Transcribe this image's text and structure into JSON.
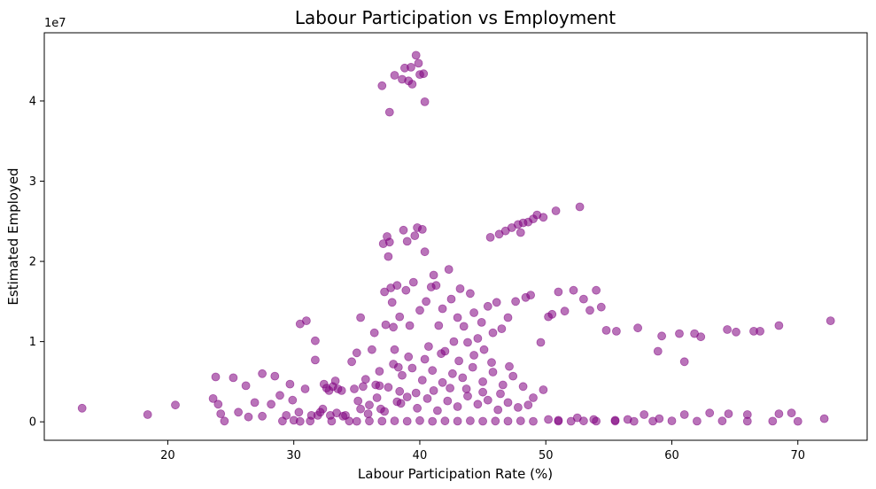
{
  "chart_data": {
    "type": "scatter",
    "title": "Labour Participation vs Employment",
    "xlabel": "Labour Participation Rate (%)",
    "ylabel": "Estimated Employed",
    "offset_text": "1e7",
    "xlim": [
      10.2,
      75.5
    ],
    "ylim": [
      -2300000,
      48500000
    ],
    "xticks": [
      20,
      30,
      40,
      50,
      60,
      70
    ],
    "xtick_labels": [
      "20",
      "30",
      "40",
      "50",
      "60",
      "70"
    ],
    "yticks": [
      0,
      10000000,
      20000000,
      30000000,
      40000000
    ],
    "ytick_labels": [
      "0",
      "1",
      "2",
      "3",
      "4"
    ],
    "grid": false,
    "color": "#800080",
    "opacity": 0.55,
    "points": [
      [
        13.2,
        1700000
      ],
      [
        18.4,
        900000
      ],
      [
        20.6,
        2100000
      ],
      [
        23.6,
        2900000
      ],
      [
        23.8,
        5600000
      ],
      [
        24.0,
        2200000
      ],
      [
        24.2,
        1000000
      ],
      [
        24.5,
        100000
      ],
      [
        25.2,
        5500000
      ],
      [
        25.6,
        1200000
      ],
      [
        26.2,
        4500000
      ],
      [
        26.4,
        600000
      ],
      [
        26.9,
        2400000
      ],
      [
        27.5,
        6000000
      ],
      [
        27.5,
        700000
      ],
      [
        28.2,
        2200000
      ],
      [
        28.5,
        5700000
      ],
      [
        28.9,
        3300000
      ],
      [
        29.1,
        100000
      ],
      [
        29.4,
        800000
      ],
      [
        29.7,
        4700000
      ],
      [
        29.9,
        2700000
      ],
      [
        30.0,
        200000
      ],
      [
        30.4,
        1200000
      ],
      [
        30.5,
        12200000
      ],
      [
        30.9,
        4100000
      ],
      [
        31.0,
        12600000
      ],
      [
        31.3,
        100000
      ],
      [
        31.4,
        800000
      ],
      [
        31.7,
        10100000
      ],
      [
        31.7,
        7700000
      ],
      [
        31.9,
        800000
      ],
      [
        32.1,
        1200000
      ],
      [
        32.3,
        1600000
      ],
      [
        32.4,
        4700000
      ],
      [
        32.6,
        4200000
      ],
      [
        32.8,
        3900000
      ],
      [
        32.9,
        800000
      ],
      [
        33.1,
        4400000
      ],
      [
        33.3,
        5100000
      ],
      [
        33.4,
        1100000
      ],
      [
        33.5,
        4100000
      ],
      [
        33.8,
        3900000
      ],
      [
        33.9,
        700000
      ],
      [
        34.1,
        800000
      ],
      [
        34.4,
        100000
      ],
      [
        34.6,
        7500000
      ],
      [
        34.8,
        4100000
      ],
      [
        35.0,
        8600000
      ],
      [
        35.1,
        2600000
      ],
      [
        35.3,
        13000000
      ],
      [
        35.3,
        1600000
      ],
      [
        35.5,
        4400000
      ],
      [
        35.7,
        5300000
      ],
      [
        35.9,
        1000000
      ],
      [
        36.0,
        2100000
      ],
      [
        36.2,
        9000000
      ],
      [
        36.4,
        11100000
      ],
      [
        36.5,
        4600000
      ],
      [
        36.6,
        3000000
      ],
      [
        36.8,
        6300000
      ],
      [
        36.9,
        1600000
      ],
      [
        37.0,
        41900000
      ],
      [
        37.1,
        22200000
      ],
      [
        37.2,
        16200000
      ],
      [
        37.3,
        12100000
      ],
      [
        37.4,
        23100000
      ],
      [
        37.5,
        20600000
      ],
      [
        37.6,
        38600000
      ],
      [
        37.6,
        22400000
      ],
      [
        37.7,
        16700000
      ],
      [
        37.8,
        14900000
      ],
      [
        37.9,
        11800000
      ],
      [
        38.0,
        43200000
      ],
      [
        38.0,
        9000000
      ],
      [
        38.2,
        17000000
      ],
      [
        38.3,
        6800000
      ],
      [
        38.4,
        13100000
      ],
      [
        38.5,
        2300000
      ],
      [
        38.6,
        42700000
      ],
      [
        38.7,
        23900000
      ],
      [
        38.8,
        44100000
      ],
      [
        38.9,
        16400000
      ],
      [
        39.0,
        22500000
      ],
      [
        39.1,
        42500000
      ],
      [
        39.2,
        12000000
      ],
      [
        39.3,
        44200000
      ],
      [
        39.4,
        42100000
      ],
      [
        39.5,
        17400000
      ],
      [
        39.6,
        23200000
      ],
      [
        39.7,
        45700000
      ],
      [
        39.8,
        24200000
      ],
      [
        39.9,
        44700000
      ],
      [
        40.0,
        43300000
      ],
      [
        40.0,
        13900000
      ],
      [
        40.2,
        24000000
      ],
      [
        40.3,
        43400000
      ],
      [
        40.4,
        39900000
      ],
      [
        40.4,
        21200000
      ],
      [
        40.5,
        15000000
      ],
      [
        40.7,
        9400000
      ],
      [
        40.9,
        16800000
      ],
      [
        41.1,
        18300000
      ],
      [
        41.3,
        17000000
      ],
      [
        41.5,
        12000000
      ],
      [
        41.8,
        14100000
      ],
      [
        42.0,
        8800000
      ],
      [
        42.3,
        19000000
      ],
      [
        42.5,
        15300000
      ],
      [
        42.7,
        10000000
      ],
      [
        43.0,
        13000000
      ],
      [
        43.2,
        16600000
      ],
      [
        43.5,
        11900000
      ],
      [
        43.8,
        9900000
      ],
      [
        44.0,
        16000000
      ],
      [
        44.3,
        13600000
      ],
      [
        44.6,
        10400000
      ],
      [
        44.9,
        12400000
      ],
      [
        45.1,
        9000000
      ],
      [
        45.4,
        14400000
      ],
      [
        45.6,
        23000000
      ],
      [
        45.8,
        11100000
      ],
      [
        46.1,
        14900000
      ],
      [
        46.3,
        23400000
      ],
      [
        46.5,
        11600000
      ],
      [
        46.8,
        23800000
      ],
      [
        47.0,
        13000000
      ],
      [
        47.3,
        24200000
      ],
      [
        47.6,
        15000000
      ],
      [
        47.8,
        24600000
      ],
      [
        48.0,
        23600000
      ],
      [
        48.2,
        24800000
      ],
      [
        48.4,
        15500000
      ],
      [
        48.6,
        24900000
      ],
      [
        48.8,
        15800000
      ],
      [
        49.0,
        25300000
      ],
      [
        49.3,
        25800000
      ],
      [
        49.6,
        9900000
      ],
      [
        49.8,
        25500000
      ],
      [
        50.2,
        13100000
      ],
      [
        50.5,
        13400000
      ],
      [
        50.8,
        26300000
      ],
      [
        51.0,
        16200000
      ],
      [
        51.5,
        13800000
      ],
      [
        52.2,
        16400000
      ],
      [
        52.7,
        26800000
      ],
      [
        53.0,
        15300000
      ],
      [
        53.5,
        13900000
      ],
      [
        54.0,
        16400000
      ],
      [
        54.4,
        14300000
      ],
      [
        54.8,
        11400000
      ],
      [
        55.6,
        11300000
      ],
      [
        57.3,
        11700000
      ],
      [
        58.9,
        8800000
      ],
      [
        59.2,
        10700000
      ],
      [
        60.6,
        11000000
      ],
      [
        61.0,
        7500000
      ],
      [
        61.8,
        11000000
      ],
      [
        62.3,
        10600000
      ],
      [
        64.4,
        11500000
      ],
      [
        65.1,
        11200000
      ],
      [
        66.5,
        11300000
      ],
      [
        67.0,
        11300000
      ],
      [
        68.5,
        12000000
      ],
      [
        72.6,
        12600000
      ],
      [
        37.5,
        4300000
      ],
      [
        38.2,
        2500000
      ],
      [
        38.6,
        5800000
      ],
      [
        39.0,
        3100000
      ],
      [
        39.4,
        6700000
      ],
      [
        39.8,
        1700000
      ],
      [
        40.2,
        5200000
      ],
      [
        40.6,
        2900000
      ],
      [
        41.0,
        6400000
      ],
      [
        41.4,
        1400000
      ],
      [
        41.8,
        4900000
      ],
      [
        42.2,
        2600000
      ],
      [
        42.6,
        6000000
      ],
      [
        43.0,
        1900000
      ],
      [
        43.4,
        5500000
      ],
      [
        43.8,
        3200000
      ],
      [
        44.2,
        6800000
      ],
      [
        44.6,
        2200000
      ],
      [
        45.0,
        5000000
      ],
      [
        45.4,
        2700000
      ],
      [
        45.8,
        6200000
      ],
      [
        46.2,
        1500000
      ],
      [
        46.6,
        4600000
      ],
      [
        47.0,
        2400000
      ],
      [
        47.4,
        5700000
      ],
      [
        47.8,
        1800000
      ],
      [
        48.2,
        4400000
      ],
      [
        48.6,
        2100000
      ],
      [
        49.0,
        3000000
      ],
      [
        49.8,
        4000000
      ],
      [
        36.8,
        4500000
      ],
      [
        37.2,
        1300000
      ],
      [
        37.9,
        7200000
      ],
      [
        38.4,
        3800000
      ],
      [
        39.1,
        8100000
      ],
      [
        39.7,
        3600000
      ],
      [
        40.4,
        7800000
      ],
      [
        41.1,
        3900000
      ],
      [
        41.7,
        8500000
      ],
      [
        42.4,
        4200000
      ],
      [
        43.1,
        7600000
      ],
      [
        43.7,
        4100000
      ],
      [
        44.3,
        8300000
      ],
      [
        45.0,
        3700000
      ],
      [
        45.7,
        7400000
      ],
      [
        46.4,
        3500000
      ],
      [
        47.1,
        6900000
      ],
      [
        30.5,
        50000
      ],
      [
        33.0,
        80000
      ],
      [
        35.0,
        60000
      ],
      [
        36.0,
        100000
      ],
      [
        37.0,
        90000
      ],
      [
        38.0,
        120000
      ],
      [
        39.0,
        70000
      ],
      [
        40.0,
        150000
      ],
      [
        41.0,
        60000
      ],
      [
        42.0,
        110000
      ],
      [
        43.0,
        90000
      ],
      [
        44.0,
        130000
      ],
      [
        45.0,
        70000
      ],
      [
        46.0,
        100000
      ],
      [
        47.0,
        80000
      ],
      [
        48.0,
        120000
      ],
      [
        49.0,
        60000
      ],
      [
        51.0,
        90000
      ],
      [
        52.0,
        70000
      ],
      [
        53.0,
        110000
      ],
      [
        54.0,
        80000
      ],
      [
        55.5,
        100000
      ],
      [
        57.0,
        60000
      ],
      [
        58.5,
        90000
      ],
      [
        60.0,
        120000
      ],
      [
        62.0,
        80000
      ],
      [
        64.0,
        110000
      ],
      [
        66.0,
        70000
      ],
      [
        68.0,
        90000
      ],
      [
        70.0,
        60000
      ],
      [
        72.1,
        400000
      ],
      [
        69.5,
        1100000
      ],
      [
        68.5,
        1000000
      ],
      [
        66.0,
        900000
      ],
      [
        64.5,
        1000000
      ],
      [
        63.0,
        1100000
      ],
      [
        61.0,
        900000
      ],
      [
        59.0,
        400000
      ],
      [
        57.8,
        900000
      ],
      [
        56.5,
        300000
      ],
      [
        55.5,
        200000
      ],
      [
        53.8,
        300000
      ],
      [
        52.5,
        500000
      ],
      [
        51.0,
        200000
      ],
      [
        50.2,
        300000
      ]
    ]
  }
}
